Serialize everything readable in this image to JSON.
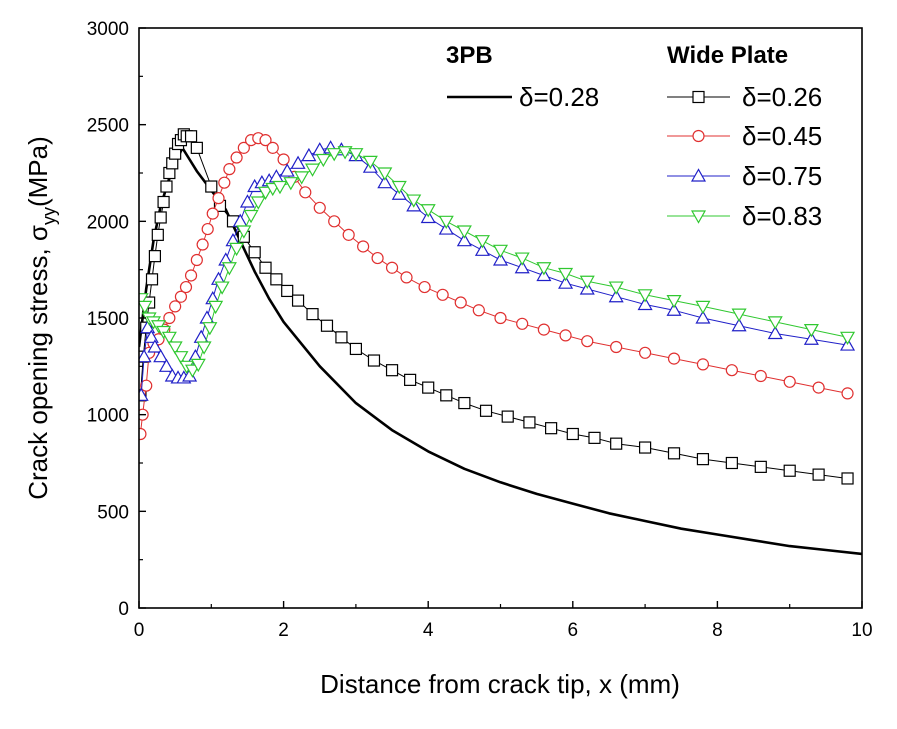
{
  "chart_data": {
    "type": "line",
    "xlabel": "Distance from crack tip, x (mm)",
    "ylabel": {
      "prefix": "Crack opening stress, ",
      "symbol": "σ",
      "subscript": "yy",
      "suffix": "(MPa)"
    },
    "xlim": [
      0,
      10
    ],
    "ylim": [
      0,
      3000
    ],
    "xticks": [
      0,
      2,
      4,
      6,
      8,
      10
    ],
    "yticks": [
      0,
      500,
      1000,
      1500,
      2000,
      2500,
      3000
    ],
    "grid": false,
    "legend": {
      "placement": "top-right",
      "groups": [
        {
          "heading": "3PB",
          "entries": [
            "δ=0.28"
          ]
        },
        {
          "heading": "Wide Plate",
          "entries": [
            "δ=0.26",
            "δ=0.45",
            "δ=0.75",
            "δ=0.83"
          ]
        }
      ]
    },
    "series": [
      {
        "name": "δ=0.28",
        "group": "3PB",
        "color": "#000000",
        "marker": "none",
        "x": [
          0,
          0.05,
          0.1,
          0.2,
          0.3,
          0.4,
          0.5,
          0.6,
          0.7,
          0.8,
          1.0,
          1.2,
          1.4,
          1.6,
          1.8,
          2.0,
          2.5,
          3.0,
          3.5,
          4.0,
          4.5,
          5.0,
          5.5,
          6.0,
          6.5,
          7.0,
          7.5,
          8.0,
          8.5,
          9.0,
          9.5,
          10.0
        ],
        "y": [
          1350,
          1500,
          1650,
          1900,
          2080,
          2200,
          2300,
          2380,
          2320,
          2260,
          2160,
          2060,
          1900,
          1740,
          1600,
          1480,
          1250,
          1060,
          920,
          810,
          720,
          650,
          590,
          540,
          490,
          450,
          410,
          380,
          350,
          320,
          300,
          280
        ]
      },
      {
        "name": "δ=0.26",
        "group": "Wide Plate",
        "color": "#000000",
        "marker": "square",
        "x": [
          0.02,
          0.06,
          0.1,
          0.14,
          0.18,
          0.22,
          0.26,
          0.3,
          0.34,
          0.38,
          0.42,
          0.46,
          0.5,
          0.54,
          0.58,
          0.62,
          0.66,
          0.72,
          0.8,
          1.0,
          1.12,
          1.3,
          1.45,
          1.6,
          1.75,
          1.9,
          2.05,
          2.2,
          2.4,
          2.6,
          2.8,
          3.0,
          3.25,
          3.5,
          3.75,
          4.0,
          4.25,
          4.5,
          4.8,
          5.1,
          5.4,
          5.7,
          6.0,
          6.3,
          6.6,
          7.0,
          7.4,
          7.8,
          8.2,
          8.6,
          9.0,
          9.4,
          9.8
        ],
        "y": [
          1100,
          1300,
          1450,
          1580,
          1700,
          1820,
          1930,
          2020,
          2100,
          2180,
          2250,
          2300,
          2350,
          2400,
          2420,
          2450,
          2440,
          2440,
          2380,
          2180,
          2080,
          2000,
          1920,
          1840,
          1760,
          1700,
          1640,
          1590,
          1520,
          1460,
          1400,
          1340,
          1280,
          1230,
          1180,
          1140,
          1100,
          1060,
          1020,
          990,
          960,
          930,
          900,
          880,
          850,
          830,
          800,
          770,
          750,
          730,
          710,
          690,
          670
        ]
      },
      {
        "name": "δ=0.45",
        "group": "Wide Plate",
        "color": "#e03030",
        "marker": "circle",
        "x": [
          0.02,
          0.05,
          0.1,
          0.14,
          0.2,
          0.27,
          0.35,
          0.42,
          0.5,
          0.58,
          0.65,
          0.72,
          0.8,
          0.88,
          0.95,
          1.02,
          1.1,
          1.18,
          1.25,
          1.35,
          1.45,
          1.55,
          1.65,
          1.75,
          1.85,
          2.0,
          2.15,
          2.3,
          2.5,
          2.7,
          2.9,
          3.1,
          3.3,
          3.5,
          3.7,
          3.95,
          4.2,
          4.45,
          4.7,
          5.0,
          5.3,
          5.6,
          5.9,
          6.2,
          6.6,
          7.0,
          7.4,
          7.8,
          8.2,
          8.6,
          9.0,
          9.4,
          9.8
        ],
        "y": [
          900,
          1000,
          1150,
          1320,
          1370,
          1390,
          1440,
          1500,
          1560,
          1610,
          1660,
          1720,
          1800,
          1880,
          1960,
          2040,
          2120,
          2200,
          2270,
          2330,
          2380,
          2420,
          2430,
          2420,
          2380,
          2320,
          2230,
          2150,
          2070,
          2000,
          1930,
          1870,
          1810,
          1760,
          1710,
          1660,
          1620,
          1580,
          1540,
          1500,
          1470,
          1440,
          1410,
          1380,
          1350,
          1320,
          1290,
          1260,
          1230,
          1200,
          1170,
          1140,
          1110
        ]
      },
      {
        "name": "δ=0.75",
        "group": "Wide Plate",
        "color": "#2020c8",
        "marker": "triangle-up",
        "x": [
          0.03,
          0.07,
          0.12,
          0.17,
          0.22,
          0.3,
          0.38,
          0.46,
          0.54,
          0.62,
          0.7,
          0.78,
          0.86,
          0.94,
          1.02,
          1.1,
          1.2,
          1.3,
          1.4,
          1.5,
          1.6,
          1.7,
          1.8,
          1.9,
          2.05,
          2.2,
          2.35,
          2.5,
          2.65,
          2.8,
          3.0,
          3.2,
          3.4,
          3.6,
          3.8,
          4.0,
          4.25,
          4.5,
          4.75,
          5.0,
          5.3,
          5.6,
          5.9,
          6.2,
          6.6,
          7.0,
          7.4,
          7.8,
          8.3,
          8.8,
          9.3,
          9.8
        ],
        "y": [
          1100,
          1300,
          1450,
          1400,
          1350,
          1300,
          1250,
          1200,
          1190,
          1190,
          1200,
          1300,
          1400,
          1500,
          1600,
          1700,
          1800,
          1900,
          2000,
          2100,
          2180,
          2200,
          2210,
          2230,
          2260,
          2300,
          2340,
          2370,
          2380,
          2370,
          2340,
          2280,
          2200,
          2140,
          2080,
          2020,
          1960,
          1900,
          1850,
          1800,
          1760,
          1720,
          1680,
          1650,
          1610,
          1570,
          1540,
          1500,
          1460,
          1420,
          1390,
          1360
        ]
      },
      {
        "name": "δ=0.83",
        "group": "Wide Plate",
        "color": "#30c830",
        "marker": "triangle-down",
        "x": [
          0.03,
          0.08,
          0.14,
          0.2,
          0.27,
          0.34,
          0.42,
          0.5,
          0.58,
          0.66,
          0.74,
          0.82,
          0.9,
          0.98,
          1.06,
          1.15,
          1.25,
          1.35,
          1.45,
          1.55,
          1.65,
          1.75,
          1.85,
          1.95,
          2.1,
          2.25,
          2.4,
          2.55,
          2.7,
          2.85,
          3.0,
          3.2,
          3.4,
          3.6,
          3.8,
          4.0,
          4.25,
          4.5,
          4.75,
          5.0,
          5.3,
          5.6,
          5.9,
          6.2,
          6.6,
          7.0,
          7.4,
          7.8,
          8.3,
          8.8,
          9.3,
          9.8
        ],
        "y": [
          1600,
          1560,
          1500,
          1480,
          1460,
          1430,
          1400,
          1350,
          1300,
          1250,
          1230,
          1260,
          1350,
          1450,
          1560,
          1660,
          1760,
          1860,
          1950,
          2030,
          2100,
          2150,
          2170,
          2180,
          2200,
          2230,
          2270,
          2320,
          2350,
          2360,
          2350,
          2310,
          2250,
          2180,
          2110,
          2060,
          2000,
          1950,
          1900,
          1850,
          1810,
          1760,
          1730,
          1690,
          1660,
          1620,
          1590,
          1560,
          1520,
          1480,
          1440,
          1400
        ]
      }
    ]
  }
}
